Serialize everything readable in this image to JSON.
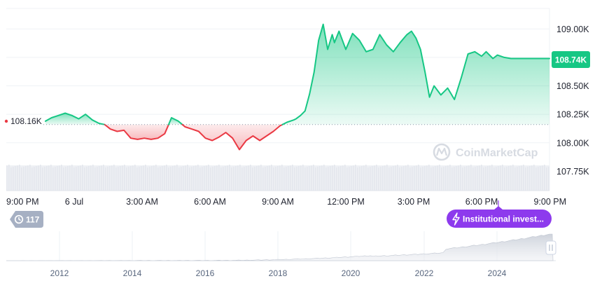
{
  "watermark": "CoinMarketCap",
  "colors": {
    "up": "#16c784",
    "down": "#ea3943",
    "grid": "#eff2f5",
    "text": "#222531",
    "muted": "#58667e",
    "event": "#8d3aed",
    "refdot": "#cfd6e4"
  },
  "chart_data": {
    "type": "line",
    "title": "",
    "ylim": [
      107.58,
      109.18
    ],
    "ytick_labels": [
      "109.00K",
      "108.75K",
      "108.50K",
      "108.25K",
      "108.00K",
      "107.75K"
    ],
    "ytick_values": [
      109.0,
      108.75,
      108.5,
      108.25,
      108.0,
      107.75
    ],
    "xtick_labels": [
      "9:00 PM",
      "6 Jul",
      "3:00 AM",
      "6:00 AM",
      "9:00 AM",
      "12:00 PM",
      "3:00 PM",
      "6:00 PM",
      "9:00 PM"
    ],
    "xtick_hours": [
      0,
      3,
      6,
      9,
      12,
      15,
      18,
      21,
      24
    ],
    "reference": {
      "value": 108.16,
      "label": "108.16K"
    },
    "current": {
      "value": 108.74,
      "label": "108.74K"
    },
    "series": [
      {
        "x": [
          1.73,
          2.0,
          2.3,
          2.6,
          2.9,
          3.2,
          3.5,
          3.8,
          4.1,
          4.35,
          4.6,
          4.9,
          5.2,
          5.5,
          5.8,
          6.1,
          6.4,
          6.7,
          7.0,
          7.3,
          7.6,
          7.9,
          8.2,
          8.5,
          8.8,
          9.1,
          9.4,
          9.7,
          10.0,
          10.3,
          10.6,
          10.9,
          11.2,
          11.5,
          11.8,
          12.1,
          12.4,
          12.7,
          12.8,
          13.0,
          13.2,
          13.4,
          13.6,
          13.8,
          14.0,
          14.2,
          14.4,
          14.5,
          14.7,
          15.0,
          15.3,
          15.6,
          15.9,
          16.2,
          16.5,
          16.8,
          17.1,
          17.4,
          17.7,
          17.9,
          18.1,
          18.3,
          18.5,
          18.7,
          18.9,
          19.2,
          19.5,
          19.8,
          20.1,
          20.4,
          20.7,
          21.0,
          21.2,
          21.5,
          21.7,
          22.0,
          22.3,
          22.6,
          22.9,
          23.2,
          23.5,
          23.8,
          24.0
        ],
        "values": [
          108.19,
          108.22,
          108.24,
          108.26,
          108.24,
          108.21,
          108.25,
          108.2,
          108.17,
          108.16,
          108.12,
          108.1,
          108.11,
          108.04,
          108.03,
          108.04,
          108.03,
          108.04,
          108.08,
          108.22,
          108.19,
          108.14,
          108.12,
          108.1,
          108.04,
          108.02,
          108.05,
          108.09,
          108.04,
          107.94,
          108.02,
          108.06,
          108.02,
          108.06,
          108.1,
          108.15,
          108.18,
          108.2,
          108.21,
          108.24,
          108.28,
          108.43,
          108.62,
          108.9,
          109.04,
          108.82,
          108.95,
          108.88,
          108.98,
          108.82,
          108.96,
          108.9,
          108.8,
          108.82,
          108.95,
          108.86,
          108.8,
          108.88,
          108.95,
          108.98,
          108.92,
          108.82,
          108.62,
          108.4,
          108.5,
          108.42,
          108.48,
          108.38,
          108.57,
          108.78,
          108.8,
          108.76,
          108.8,
          108.74,
          108.77,
          108.75,
          108.74,
          108.74,
          108.74,
          108.74,
          108.74,
          108.74,
          108.74
        ]
      }
    ],
    "navigator": {
      "xtick_labels": [
        "2012",
        "2014",
        "2016",
        "2018",
        "2020",
        "2022",
        "2024"
      ]
    }
  },
  "history_badge": {
    "icon": "history-icon",
    "count": "117"
  },
  "event_badge": {
    "icon": "lightning-icon",
    "label": "Institutional invest..."
  }
}
